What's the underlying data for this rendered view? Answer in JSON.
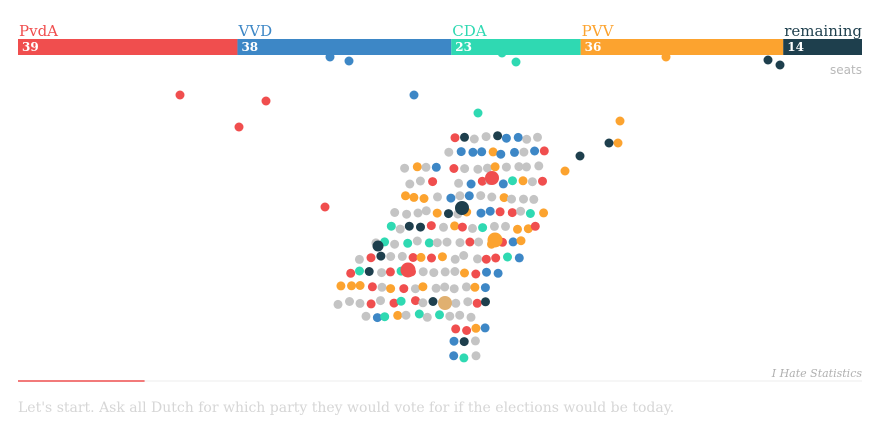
{
  "chart_data": {
    "type": "bar",
    "orientation": "horizontal-stacked",
    "unit_label": "seats",
    "total": 150,
    "segments": [
      {
        "name": "PvdA",
        "value": 39,
        "color": "#f04e4e"
      },
      {
        "name": "VVD",
        "value": 38,
        "color": "#3d87c6"
      },
      {
        "name": "CDA",
        "value": 23,
        "color": "#2fd9b2"
      },
      {
        "name": "PVV",
        "value": 36,
        "color": "#fca32f"
      },
      {
        "name": "remaining",
        "value": 14,
        "color": "#1e3f4d"
      }
    ],
    "neutral_color": "#c4c4c4"
  },
  "source": "I Hate Statistics",
  "caption": "Let's start. Ask all Dutch for which party they would vote for if the elections would be today.",
  "progress_fraction": 0.15
}
